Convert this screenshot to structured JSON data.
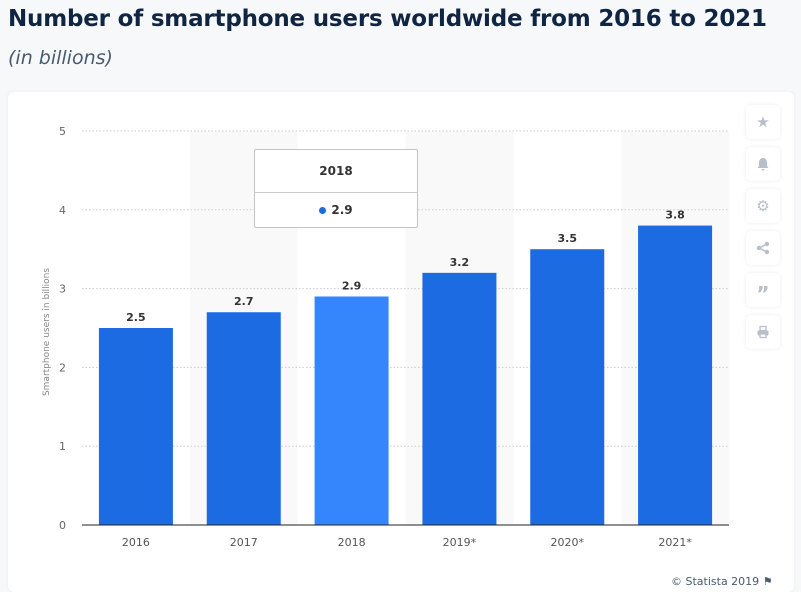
{
  "title": "Number of smartphone users worldwide from 2016 to 2021",
  "subtitle": "(in billions)",
  "credit": "© Statista 2019",
  "tools": [
    "star-icon",
    "bell-icon",
    "gear-icon",
    "share-icon",
    "quote-icon",
    "print-icon"
  ],
  "tooltip": {
    "label": "2018",
    "value": "2.9"
  },
  "colors": {
    "bar": "#1c6be2",
    "bar_highlight": "#3585fd",
    "band": "#f9f9f9"
  },
  "chart_data": {
    "type": "bar",
    "categories": [
      "2016",
      "2017",
      "2018",
      "2019*",
      "2020*",
      "2021*"
    ],
    "values": [
      2.5,
      2.7,
      2.9,
      3.2,
      3.5,
      3.8
    ],
    "value_labels": [
      "2.5",
      "2.7",
      "2.9",
      "3.2",
      "3.5",
      "3.8"
    ],
    "highlighted": "2018",
    "ylabel": "Smartphone users in billions",
    "xlabel": "",
    "ylim": [
      0,
      5
    ],
    "yticks": [
      0,
      1,
      2,
      3,
      4,
      5
    ],
    "grid": true
  }
}
